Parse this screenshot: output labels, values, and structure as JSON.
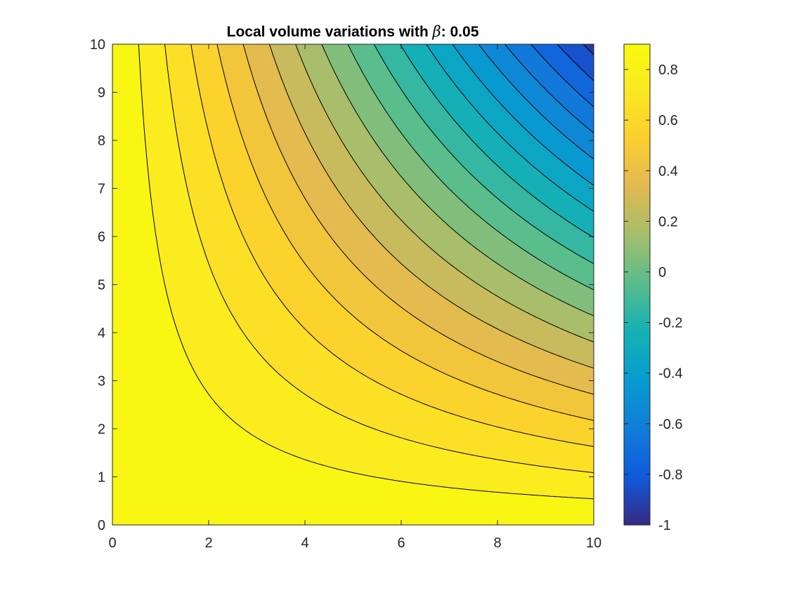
{
  "chart_data": {
    "type": "heatmap",
    "subtype": "filled contour",
    "title": {
      "prefix": "Local volume variations with ",
      "symbol": "β",
      "suffix": ": 0.05"
    },
    "xlabel": "",
    "ylabel": "",
    "xlim": [
      0,
      10
    ],
    "ylim": [
      0,
      10
    ],
    "xticks": [
      "0",
      "2",
      "4",
      "6",
      "8",
      "10"
    ],
    "yticks": [
      "0",
      "1",
      "2",
      "3",
      "4",
      "5",
      "6",
      "7",
      "8",
      "9",
      "10"
    ],
    "x_tick_values": [
      0,
      2,
      4,
      6,
      8,
      10
    ],
    "y_tick_values": [
      0,
      1,
      2,
      3,
      4,
      5,
      6,
      7,
      8,
      9,
      10
    ],
    "colorbar": {
      "range": [
        -1,
        0.9
      ],
      "ticks": [
        "-1",
        "-0.8",
        "-0.6",
        "-0.4",
        "-0.2",
        "0",
        "0.2",
        "0.4",
        "0.6",
        "0.8"
      ],
      "tick_values": [
        -1,
        -0.8,
        -0.6,
        -0.4,
        -0.2,
        0,
        0.2,
        0.4,
        0.6,
        0.8
      ],
      "colormap": "parula"
    },
    "contour_levels": [
      -0.9,
      -0.8,
      -0.7,
      -0.6,
      -0.5,
      -0.4,
      -0.3,
      -0.2,
      -0.1,
      0,
      0.1,
      0.2,
      0.3,
      0.4,
      0.5,
      0.6,
      0.7,
      0.8
    ],
    "contour_shape": "hyperbolic; value decreases with x*y",
    "value_range": [
      -1,
      0.9
    ],
    "grid": false,
    "contour_line_color": "#000000"
  }
}
